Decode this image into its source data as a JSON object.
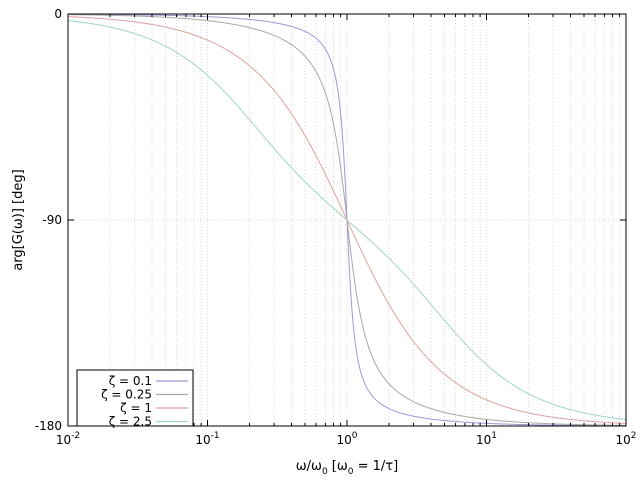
{
  "chart_data": {
    "type": "line",
    "x_scale": "log",
    "xlim": [
      0.01,
      100
    ],
    "ylim": [
      -180,
      0
    ],
    "xlabel": "ω/ω",
    "xlabel_sub": "0",
    "xlabel_rest": " [ω",
    "xlabel_sub2": "0",
    "xlabel_tail": " = 1/τ]",
    "ylabel": "arg[G(ω)] [deg]",
    "x_ticks": [
      {
        "value": 0.01,
        "base": "10",
        "exp": "-2"
      },
      {
        "value": 0.1,
        "base": "10",
        "exp": "-1"
      },
      {
        "value": 1,
        "base": "10",
        "exp": "0"
      },
      {
        "value": 10,
        "base": "10",
        "exp": "1"
      },
      {
        "value": 100,
        "base": "10",
        "exp": "2"
      }
    ],
    "y_ticks": [
      {
        "value": 0,
        "label": "0"
      },
      {
        "value": -90,
        "label": "-90"
      },
      {
        "value": -180,
        "label": "-180"
      }
    ],
    "grid": true,
    "legend_position": "bottom-left",
    "series": [
      {
        "name": "ζ = 0.1",
        "zeta": 0.1,
        "color": "#9a9ad6",
        "x": [
          0.01,
          0.02,
          0.05,
          0.1,
          0.2,
          0.3,
          0.5,
          0.7,
          0.8,
          0.9,
          0.95,
          1.0,
          1.05,
          1.1,
          1.25,
          1.5,
          2,
          3,
          5,
          10,
          20,
          50,
          100
        ],
        "y": [
          -0.1,
          -0.2,
          -0.6,
          -1.2,
          -2.4,
          -3.8,
          -7.6,
          -15.4,
          -23.9,
          -43.5,
          -62.8,
          -90,
          -116.3,
          -136.3,
          -156.1,
          -166.3,
          -172.4,
          -175.7,
          -177.6,
          -178.8,
          -179.4,
          -179.8,
          -179.9
        ]
      },
      {
        "name": "ζ = 0.25",
        "zeta": 0.25,
        "color": "#a8a8a8",
        "x": [
          0.01,
          0.02,
          0.05,
          0.1,
          0.2,
          0.3,
          0.5,
          0.7,
          0.8,
          0.9,
          1.0,
          1.1,
          1.25,
          1.5,
          2,
          3,
          5,
          10,
          20,
          50,
          100
        ],
        "y": [
          -0.3,
          -0.6,
          -1.4,
          -2.9,
          -6.0,
          -9.4,
          -18.4,
          -34.5,
          -48.0,
          -67.0,
          -90,
          -110.4,
          -131.9,
          -148.4,
          -161.6,
          -169.4,
          -174.0,
          -177.1,
          -178.6,
          -179.4,
          -179.7
        ]
      },
      {
        "name": "ζ = 1",
        "zeta": 1,
        "color": "#e0a0a0",
        "x": [
          0.01,
          0.02,
          0.05,
          0.1,
          0.2,
          0.3,
          0.5,
          0.7,
          1.0,
          1.5,
          2,
          3,
          5,
          10,
          20,
          50,
          100
        ],
        "y": [
          -1.1,
          -2.3,
          -5.7,
          -11.4,
          -22.6,
          -33.4,
          -53.1,
          -69.9,
          -90,
          -112.6,
          -126.9,
          -143.1,
          -157.4,
          -168.6,
          -174.3,
          -177.7,
          -178.9
        ]
      },
      {
        "name": "ζ = 2.5",
        "zeta": 2.5,
        "color": "#9fd6c6",
        "x": [
          0.01,
          0.02,
          0.05,
          0.1,
          0.2,
          0.3,
          0.5,
          0.7,
          1.0,
          1.5,
          2,
          3,
          5,
          10,
          20,
          50,
          100
        ],
        "y": [
          -2.9,
          -5.7,
          -14.0,
          -26.8,
          -46.4,
          -58.7,
          -73.3,
          -81.5,
          -90,
          -99.5,
          -106.7,
          -118.5,
          -134.6,
          -153.4,
          -165.8,
          -174.3,
          -177.1
        ]
      }
    ]
  },
  "colors": {
    "grid": "#cfcfcf",
    "axis": "#000000",
    "legend_border": "#000000"
  }
}
